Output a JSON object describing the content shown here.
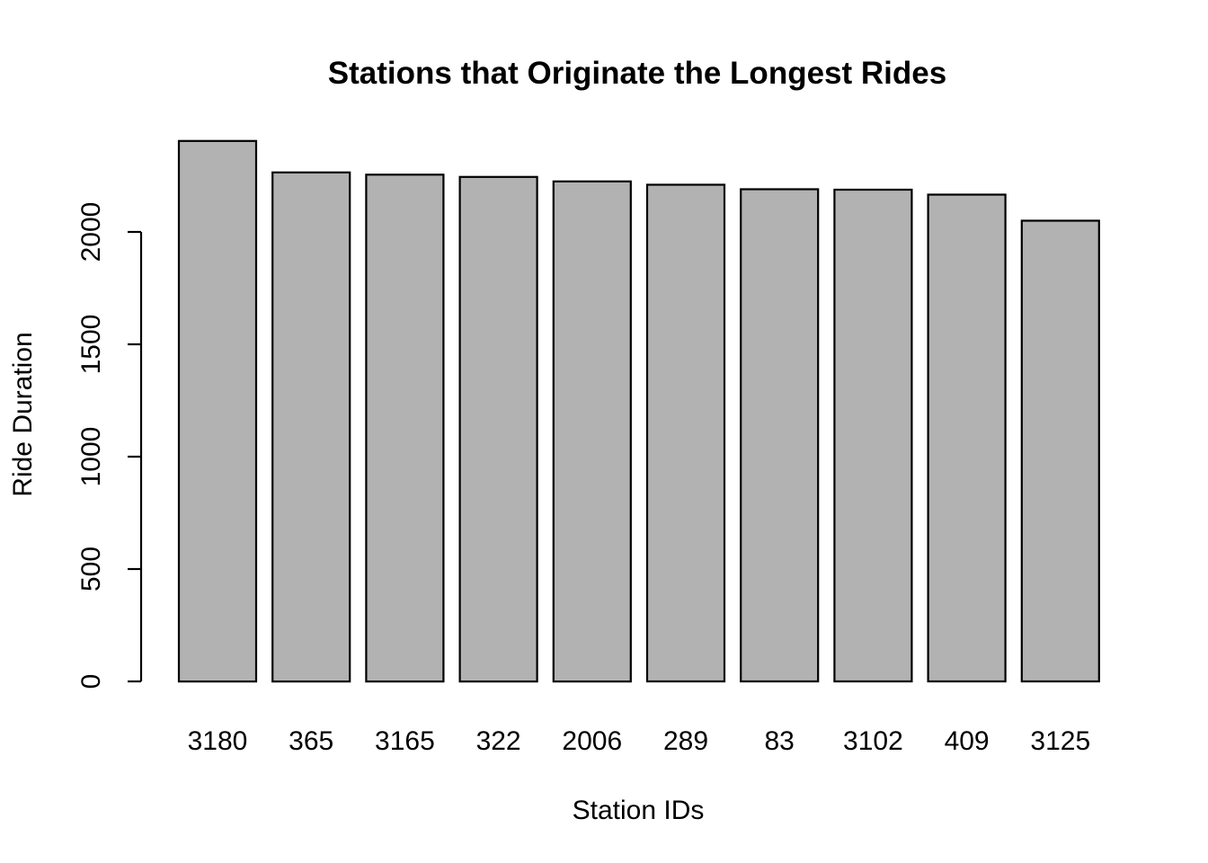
{
  "chart_data": {
    "type": "bar",
    "title": "Stations that Originate the Longest Rides",
    "xlabel": "Station IDs",
    "ylabel": "Ride Duration",
    "categories": [
      "3180",
      "365",
      "3165",
      "322",
      "2006",
      "289",
      "83",
      "3102",
      "409",
      "3125"
    ],
    "values": [
      2405,
      2265,
      2255,
      2245,
      2225,
      2210,
      2190,
      2188,
      2166,
      2050
    ],
    "yticks": [
      0,
      500,
      1000,
      1500,
      2000
    ],
    "ylim": [
      0,
      2405
    ],
    "grid": false,
    "legend": "none",
    "colors": {
      "bar_fill": "#b2b2b2",
      "bar_stroke": "#000000",
      "background": "#ffffff"
    }
  }
}
